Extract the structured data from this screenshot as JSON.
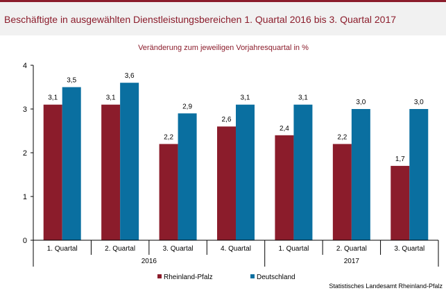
{
  "header": {
    "title": "Beschäftigte in ausgewählten Dienstleistungsbereichen 1. Quartal 2016 bis 3. Quartal 2017"
  },
  "source": "Statistisches Landesamt Rheinland-Pfalz",
  "colors": {
    "brand": "#8b1c2b",
    "series_rlp": "#8b1c2b",
    "series_de": "#0a6fa0",
    "title_bg": "#f1f1f1"
  },
  "chart_data": {
    "type": "bar",
    "subtitle": "Veränderung zum jeweiligen Vorjahresquartal in %",
    "categories": [
      "1. Quartal",
      "2. Quartal",
      "3. Quartal",
      "4. Quartal",
      "1. Quartal",
      "2. Quartal",
      "3. Quartal"
    ],
    "groups": [
      {
        "label": "2016",
        "from": 0,
        "to": 3
      },
      {
        "label": "2017",
        "from": 4,
        "to": 6
      }
    ],
    "series": [
      {
        "name": "Rheinland-Pfalz",
        "values": [
          3.1,
          3.1,
          2.2,
          2.6,
          2.4,
          2.2,
          1.7
        ],
        "labels": [
          "3,1",
          "3,1",
          "2,2",
          "2,6",
          "2,4",
          "2,2",
          "1,7"
        ],
        "color": "#8b1c2b"
      },
      {
        "name": "Deutschland",
        "values": [
          3.5,
          3.6,
          2.9,
          3.1,
          3.1,
          3.0,
          3.0
        ],
        "labels": [
          "3,5",
          "3,6",
          "2,9",
          "3,1",
          "3,1",
          "3,0",
          "3,0"
        ],
        "color": "#0a6fa0"
      }
    ],
    "yticks": [
      "0",
      "1",
      "2",
      "3",
      "4"
    ],
    "ylim": [
      0,
      4
    ],
    "grid": false,
    "legend_position": "bottom"
  }
}
